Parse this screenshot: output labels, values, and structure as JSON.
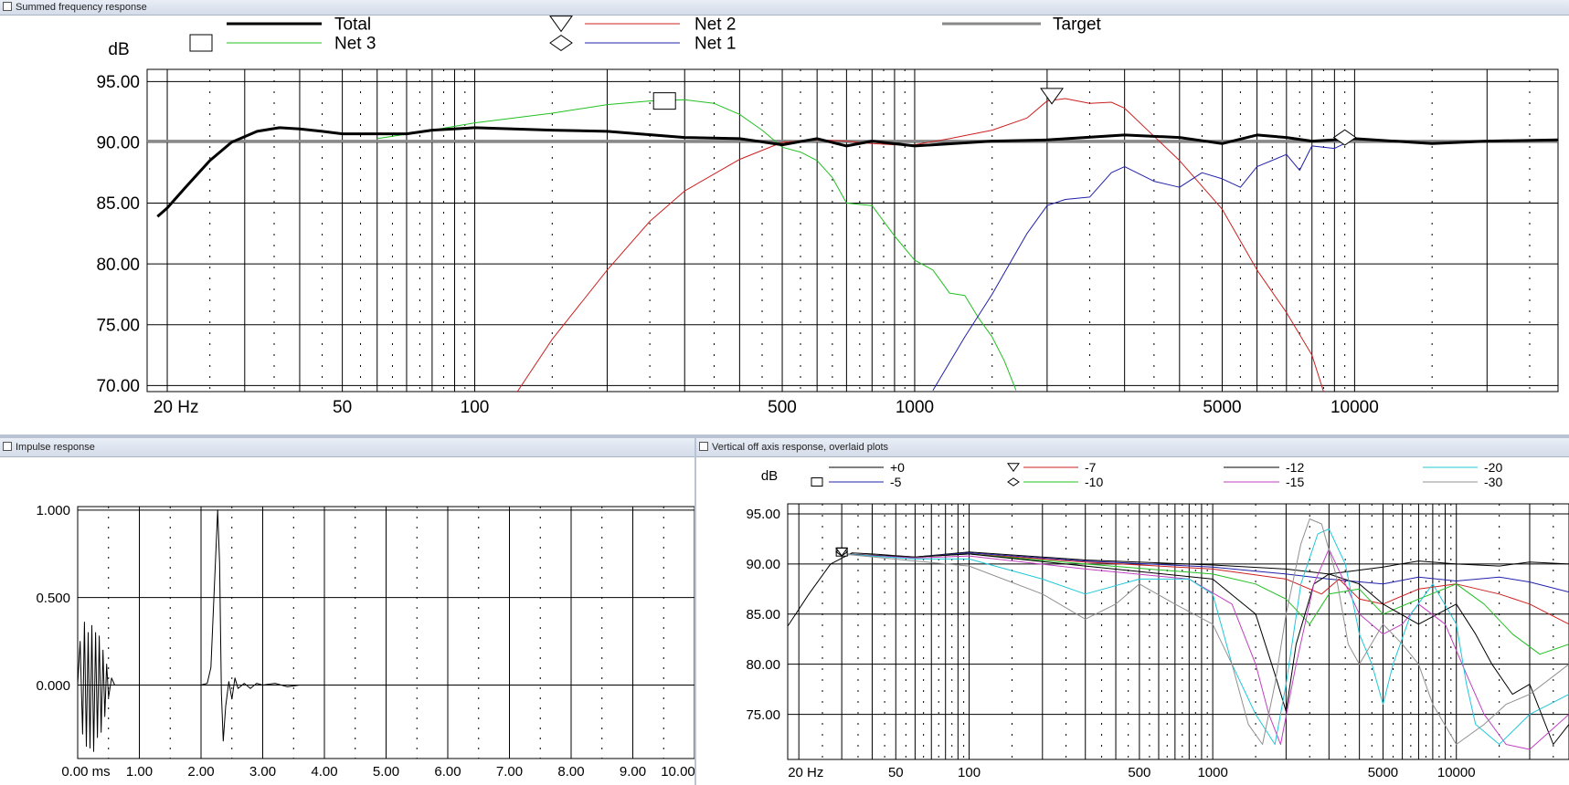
{
  "windows": {
    "summed": {
      "title": "Summed frequency response"
    },
    "impulse": {
      "title": "Impulse response"
    },
    "offaxis": {
      "title": "Vertical off axis response, overlaid plots"
    }
  },
  "colors": {
    "total": "#000000",
    "net3": "#22c022",
    "net2": "#cc2020",
    "net1": "#2020aa",
    "target": "#888888"
  },
  "chart_data": [
    {
      "type": "line",
      "ylabel": "dB",
      "x_scale": "log",
      "xlim": [
        18,
        29000
      ],
      "ylim": [
        69.5,
        96
      ],
      "x_ticks": [
        20,
        50,
        100,
        500,
        1000,
        5000,
        10000
      ],
      "x_tick_labels": [
        "20 Hz",
        "50",
        "100",
        "500",
        "1000",
        "5000",
        "10000"
      ],
      "y_ticks": [
        95,
        90,
        85,
        80,
        75,
        70
      ],
      "y_tick_labels": [
        "95.00",
        "90.00",
        "85.00",
        "80.00",
        "75.00",
        "70.00"
      ],
      "legend": [
        {
          "name": "Total",
          "color": "#000000",
          "width": 3
        },
        {
          "name": "Net 2",
          "color": "#cc2020",
          "marker": "triangle"
        },
        {
          "name": "Target",
          "color": "#888888",
          "width": 3
        },
        {
          "name": "Net 3",
          "color": "#22c022",
          "marker": "square"
        },
        {
          "name": "Net 1",
          "color": "#2020aa",
          "marker": "diamond"
        }
      ],
      "series": [
        {
          "name": "Target",
          "x": [
            18,
            29000
          ],
          "y": [
            90.1,
            90.1
          ]
        },
        {
          "name": "Net 3",
          "x": [
            60,
            80,
            100,
            150,
            200,
            250,
            300,
            350,
            400,
            450,
            500,
            550,
            600,
            650,
            700,
            800,
            900,
            1000,
            1100,
            1200,
            1300,
            1400,
            1500,
            1600,
            1700
          ],
          "y": [
            90.3,
            91.0,
            91.6,
            92.4,
            93.1,
            93.4,
            93.5,
            93.2,
            92.3,
            91.0,
            89.6,
            89.2,
            88.5,
            87.1,
            85.0,
            84.8,
            82.3,
            80.3,
            79.5,
            77.6,
            77.4,
            75.5,
            74.0,
            72.0,
            69.6
          ]
        },
        {
          "name": "Net 2",
          "x": [
            125,
            150,
            200,
            250,
            300,
            400,
            500,
            600,
            700,
            800,
            900,
            1000,
            1200,
            1500,
            1800,
            2000,
            2200,
            2500,
            2800,
            3000,
            3500,
            4000,
            5000,
            6000,
            7000,
            8000,
            8500
          ],
          "y": [
            69.5,
            73.8,
            79.5,
            83.5,
            86.0,
            88.6,
            90.0,
            90.2,
            90.1,
            89.9,
            89.8,
            89.8,
            90.3,
            91.0,
            92.0,
            93.4,
            93.6,
            93.2,
            93.3,
            92.8,
            90.5,
            88.5,
            84.5,
            79.5,
            76.0,
            72.5,
            69.5
          ]
        },
        {
          "name": "Net 1",
          "x": [
            1100,
            1300,
            1500,
            1800,
            2000,
            2200,
            2500,
            2800,
            3000,
            3500,
            4000,
            4500,
            5000,
            5500,
            6000,
            7000,
            7500,
            8000,
            9000,
            10000
          ],
          "y": [
            69.6,
            74.0,
            77.5,
            82.5,
            84.8,
            85.3,
            85.5,
            87.5,
            88.0,
            86.8,
            86.3,
            87.5,
            87.0,
            86.3,
            88.0,
            89.0,
            87.7,
            89.7,
            89.5,
            90.3
          ]
        },
        {
          "name": "Total",
          "x": [
            19,
            20,
            22,
            25,
            28,
            32,
            36,
            40,
            45,
            50,
            60,
            70,
            80,
            100,
            150,
            200,
            300,
            400,
            500,
            600,
            700,
            800,
            1000,
            1500,
            2000,
            3000,
            4000,
            5000,
            6000,
            7000,
            8000,
            10000,
            15000,
            20000,
            29000
          ],
          "y": [
            83.9,
            84.6,
            86.3,
            88.5,
            90.0,
            90.9,
            91.2,
            91.1,
            90.9,
            90.7,
            90.7,
            90.7,
            91.0,
            91.2,
            91.0,
            90.9,
            90.4,
            90.3,
            89.8,
            90.3,
            89.7,
            90.1,
            89.7,
            90.1,
            90.2,
            90.6,
            90.4,
            89.9,
            90.6,
            90.4,
            90.1,
            90.3,
            89.9,
            90.1,
            90.2
          ]
        }
      ],
      "markers": [
        {
          "series": "Net 3",
          "shape": "square",
          "x": 270,
          "y": 93.4
        },
        {
          "series": "Net 2",
          "shape": "triangle",
          "x": 2050,
          "y": 93.8
        },
        {
          "series": "Net 1",
          "shape": "diamond",
          "x": 9500,
          "y": 90.4
        }
      ],
      "grid": true
    },
    {
      "type": "line",
      "xlim": [
        0,
        10
      ],
      "ylim": [
        -0.42,
        1.02
      ],
      "x_ticks": [
        0,
        1,
        2,
        3,
        4,
        5,
        6,
        7,
        8,
        9,
        10
      ],
      "x_tick_labels": [
        "0.00 ms",
        "1.00",
        "2.00",
        "3.00",
        "4.00",
        "5.00",
        "6.00",
        "7.00",
        "8.00",
        "9.00",
        "10.00"
      ],
      "y_ticks": [
        1,
        0.5,
        0
      ],
      "y_tick_labels": [
        "1.000",
        "0.500",
        "0.000"
      ],
      "series": [
        {
          "name": "impulse",
          "x": [
            0.0,
            0.04,
            0.08,
            0.11,
            0.14,
            0.17,
            0.2,
            0.23,
            0.26,
            0.29,
            0.32,
            0.35,
            0.38,
            0.41,
            0.44,
            0.47,
            0.5,
            0.55,
            0.6,
            1.0,
            1.5,
            2.0,
            2.1,
            2.16,
            2.22,
            2.27,
            2.3,
            2.33,
            2.36,
            2.4,
            2.45,
            2.5,
            2.55,
            2.6,
            2.7,
            2.8,
            2.9,
            3.0,
            3.2,
            3.4,
            3.6,
            4.0,
            5.0,
            6.0,
            7.0,
            8.0,
            9.0,
            10.0
          ],
          "y": [
            0.0,
            0.25,
            -0.28,
            0.36,
            -0.35,
            0.3,
            -0.36,
            0.34,
            -0.38,
            0.3,
            -0.3,
            0.28,
            -0.27,
            0.2,
            -0.18,
            0.12,
            -0.07,
            0.04,
            0.0,
            0.0,
            0.0,
            0.0,
            0.01,
            0.1,
            0.6,
            1.0,
            0.7,
            -0.05,
            -0.32,
            -0.12,
            0.02,
            -0.08,
            0.04,
            -0.02,
            0.01,
            -0.02,
            0.01,
            0.0,
            0.01,
            -0.01,
            0.0,
            0.0,
            0.0,
            0.0,
            0.0,
            0.0,
            0.0,
            0.0
          ]
        }
      ],
      "grid": true
    },
    {
      "type": "line",
      "ylabel": "dB",
      "x_scale": "log",
      "xlim": [
        18,
        29000
      ],
      "ylim": [
        70.5,
        96
      ],
      "x_ticks": [
        20,
        50,
        100,
        500,
        1000,
        5000,
        10000
      ],
      "x_tick_labels": [
        "20 Hz",
        "50",
        "100",
        "500",
        "1000",
        "5000",
        "10000"
      ],
      "y_ticks": [
        95,
        90,
        85,
        80,
        75
      ],
      "y_tick_labels": [
        "95.00",
        "90.00",
        "85.00",
        "80.00",
        "75.00"
      ],
      "legend": [
        {
          "name": "+0",
          "color": "#000000"
        },
        {
          "name": "-7",
          "color": "#cc2020",
          "marker": "triangle"
        },
        {
          "name": "-12",
          "color": "#000000"
        },
        {
          "name": "-20",
          "color": "#20c8d8"
        },
        {
          "name": "-5",
          "color": "#2020aa",
          "marker": "square"
        },
        {
          "name": "-10",
          "color": "#22c022",
          "marker": "diamond"
        },
        {
          "name": "-15",
          "color": "#c040c0"
        },
        {
          "name": "-30",
          "color": "#909090"
        }
      ],
      "series": [
        {
          "name": "+0",
          "color": "#000000",
          "x": [
            18,
            22,
            27,
            33,
            40,
            60,
            100,
            300,
            1000,
            2000,
            3000,
            5000,
            7000,
            10000,
            15000,
            20000,
            29000
          ],
          "y": [
            83.8,
            87.0,
            90.0,
            91.1,
            91.0,
            90.7,
            91.2,
            90.4,
            89.9,
            89.5,
            89.0,
            89.7,
            90.3,
            90.0,
            89.8,
            90.2,
            90.0
          ]
        },
        {
          "name": "-5",
          "color": "#2020aa",
          "x": [
            30,
            60,
            100,
            300,
            1000,
            2000,
            3000,
            5000,
            7000,
            10000,
            15000,
            20000,
            29000
          ],
          "y": [
            91.0,
            90.7,
            91.1,
            90.3,
            89.7,
            89.0,
            88.5,
            88.0,
            88.7,
            88.3,
            88.7,
            88.2,
            87.2
          ]
        },
        {
          "name": "-7",
          "color": "#cc2020",
          "x": [
            30,
            60,
            100,
            300,
            1000,
            2000,
            2800,
            3300,
            4000,
            5000,
            7000,
            10000,
            15000,
            20000,
            29000
          ],
          "y": [
            91.0,
            90.7,
            91.0,
            90.2,
            89.5,
            88.5,
            87.0,
            88.5,
            86.5,
            86.0,
            87.5,
            88.0,
            87.0,
            86.0,
            84.0
          ]
        },
        {
          "name": "-10",
          "color": "#22c022",
          "x": [
            30,
            60,
            100,
            300,
            1000,
            1500,
            2000,
            2500,
            3000,
            4000,
            5000,
            7000,
            10000,
            13000,
            17000,
            22000,
            29000
          ],
          "y": [
            91.0,
            90.7,
            91.0,
            90.0,
            89.0,
            88.0,
            86.5,
            84.0,
            87.0,
            87.5,
            85.0,
            86.5,
            88.0,
            86.0,
            83.0,
            81.0,
            82.0
          ]
        },
        {
          "name": "-12",
          "color": "#000000",
          "x": [
            30,
            60,
            100,
            300,
            1000,
            1500,
            1800,
            2000,
            2200,
            2600,
            3000,
            4000,
            5000,
            7000,
            10000,
            12000,
            14000,
            17000,
            20000,
            25000,
            29000
          ],
          "y": [
            91.0,
            90.7,
            91.0,
            89.8,
            88.5,
            85.0,
            79.0,
            75.3,
            82.0,
            88.0,
            89.0,
            88.0,
            86.0,
            84.0,
            86.0,
            83.0,
            80.0,
            77.0,
            78.0,
            72.0,
            74.0
          ]
        },
        {
          "name": "-15",
          "color": "#c040c0",
          "x": [
            30,
            60,
            100,
            300,
            800,
            1200,
            1500,
            1700,
            1900,
            2200,
            2600,
            3000,
            3500,
            4000,
            5000,
            6000,
            7000,
            9000,
            11000,
            13000,
            16000,
            20000,
            29000
          ],
          "y": [
            91.0,
            90.6,
            90.8,
            89.5,
            88.5,
            86.0,
            80.0,
            75.0,
            72.0,
            80.0,
            88.0,
            91.5,
            88.0,
            85.0,
            83.0,
            84.0,
            86.0,
            84.0,
            79.0,
            75.0,
            72.0,
            71.5,
            75.0
          ]
        },
        {
          "name": "-20",
          "color": "#20c8d8",
          "x": [
            30,
            60,
            100,
            200,
            300,
            500,
            800,
            1000,
            1200,
            1500,
            1800,
            2000,
            2300,
            2700,
            3000,
            3500,
            4000,
            4500,
            5000,
            5500,
            6500,
            8000,
            10000,
            11000,
            12000,
            15000,
            20000,
            29000
          ],
          "y": [
            91.0,
            90.5,
            90.5,
            88.5,
            87.0,
            88.5,
            88.5,
            87.0,
            80.0,
            75.0,
            72.0,
            78.0,
            88.0,
            93.0,
            93.5,
            90.0,
            83.0,
            80.0,
            76.0,
            80.0,
            85.0,
            88.0,
            84.0,
            78.0,
            74.0,
            72.0,
            75.0,
            77.0
          ]
        },
        {
          "name": "-30",
          "color": "#909090",
          "x": [
            30,
            60,
            100,
            200,
            300,
            400,
            500,
            700,
            1000,
            1200,
            1400,
            1600,
            1800,
            2000,
            2300,
            2500,
            2800,
            3200,
            3600,
            4000,
            5000,
            6000,
            7000,
            8000,
            10000,
            13000,
            16000,
            20000,
            29000
          ],
          "y": [
            91.0,
            90.3,
            89.8,
            87.0,
            84.5,
            86.0,
            88.0,
            86.0,
            84.0,
            80.0,
            74.0,
            72.0,
            78.0,
            85.0,
            92.0,
            94.5,
            94.0,
            89.0,
            82.0,
            80.0,
            84.0,
            82.0,
            80.0,
            76.0,
            72.0,
            74.0,
            76.0,
            77.0,
            80.0
          ]
        }
      ],
      "markers": [
        {
          "series": "-5",
          "shape": "square",
          "x": 30,
          "y": 91.2
        },
        {
          "series": "-10",
          "shape": "diamond",
          "x": 30,
          "y": 91.2
        },
        {
          "series": "-7",
          "shape": "triangle",
          "x": 30,
          "y": 91.2
        }
      ],
      "grid": true
    }
  ]
}
